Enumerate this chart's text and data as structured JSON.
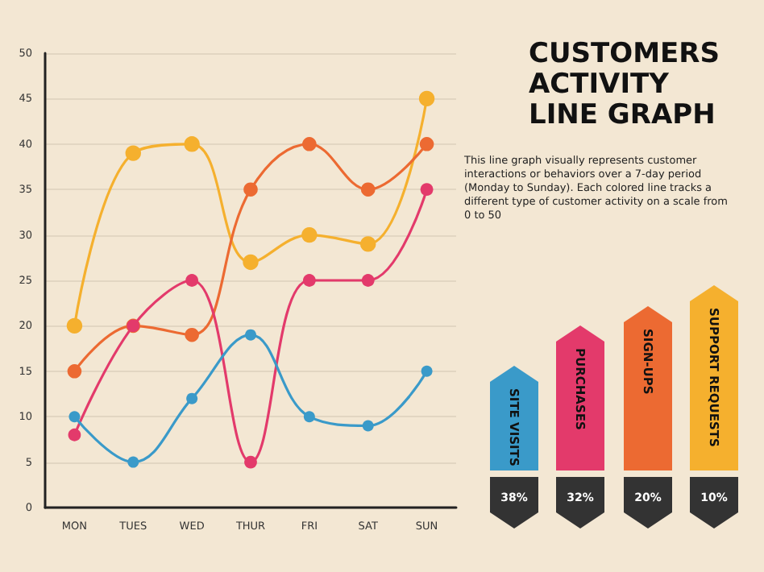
{
  "chart_data": {
    "type": "line",
    "title": "CUSTOMERS ACTIVITY LINE GRAPH",
    "annotations": [
      "This line graph visually represents customer interactions or behaviors over a 7-day period (Monday to Sunday). Each colored line tracks a different type of customer activity on a scale from 0 to 50",
      "38%",
      "32%",
      "20%",
      "10%"
    ],
    "categories": [
      "MON",
      "TUES",
      "WED",
      "THUR",
      "FRI",
      "SAT",
      "SUN"
    ],
    "series": [
      {
        "name": "SITE VISITS",
        "color": "#3a9ac9",
        "values": [
          10,
          5,
          12,
          19,
          10,
          9,
          15
        ]
      },
      {
        "name": "PURCHASES",
        "color": "#e33a6b",
        "values": [
          8,
          20,
          25,
          5,
          25,
          25,
          35
        ]
      },
      {
        "name": "SIGN-UPS",
        "color": "#ec6a32",
        "values": [
          15,
          20,
          19,
          35,
          40,
          35,
          40
        ]
      },
      {
        "name": "SUPPORT REQUESTS",
        "color": "#f5b02e",
        "values": [
          20,
          39,
          40,
          27,
          30,
          29,
          45
        ]
      }
    ],
    "ylim": [
      0,
      50
    ],
    "yticks": [
      0,
      5,
      10,
      15,
      20,
      25,
      30,
      35,
      40,
      45,
      50
    ],
    "grid": "y",
    "legend": "right",
    "marker": "circle",
    "line_style": "solid"
  }
}
